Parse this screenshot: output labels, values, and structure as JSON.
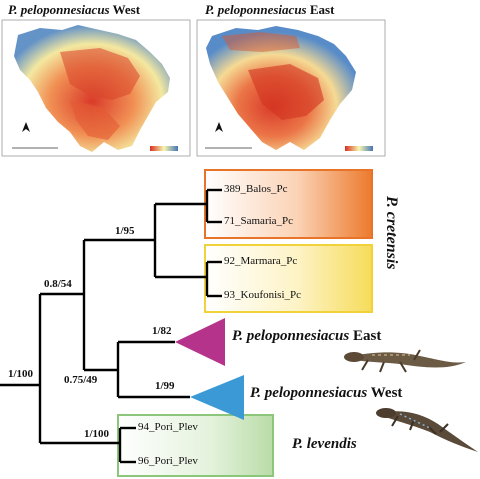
{
  "maps": {
    "west": {
      "title_genus": "P. peloponnesiacus",
      "title_suffix": "West"
    },
    "east": {
      "title_genus": "P. peloponnesiacus",
      "title_suffix": "East"
    }
  },
  "tree": {
    "support": {
      "root": "1/100",
      "n1": "0.8/54",
      "cretensis": "1/95",
      "pelop_group": "0.75/49",
      "east": "1/82",
      "west": "1/99",
      "levendis": "1/100"
    },
    "tips": {
      "balos": "389_Balos_Pc",
      "samaria": "71_Samaria_Pc",
      "marmara": "92_Marmara_Pc",
      "koufonisi": "93_Koufonisi_Pc",
      "pori94": "94_Pori_Plev",
      "pori96": "96_Pori_Plev"
    },
    "clades": {
      "cretensis": "P. cretensis",
      "east_genus": "P. peloponnesiacus",
      "east_suffix": "East",
      "west_genus": "P. peloponnesiacus",
      "west_suffix": "West",
      "levendis": "P. levendis"
    },
    "colors": {
      "cretensis_box": "#e8742a",
      "marmara_box": "#f2d23a",
      "levendis_box": "#8cc67a",
      "east_triangle": "#b5338a",
      "west_triangle": "#3b9ad6"
    }
  }
}
